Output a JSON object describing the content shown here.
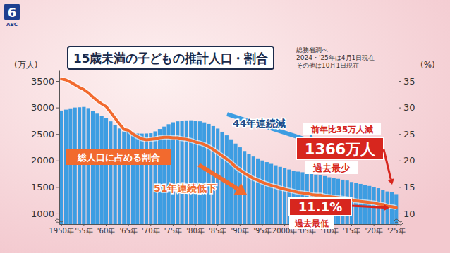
{
  "chart_data": {
    "type": "bar",
    "title": "15歳未満の子どもの推計人口・割合",
    "categories": [
      "1950年",
      null,
      null,
      null,
      null,
      "'55年",
      null,
      null,
      null,
      null,
      "'60年",
      null,
      null,
      null,
      null,
      "'65年",
      null,
      null,
      null,
      null,
      "'70年",
      null,
      null,
      null,
      null,
      "'75年",
      null,
      null,
      null,
      null,
      "'80年",
      null,
      null,
      null,
      null,
      "'85年",
      null,
      null,
      null,
      null,
      "'90年",
      null,
      null,
      null,
      null,
      "'95年",
      null,
      null,
      null,
      null,
      "2000年",
      null,
      null,
      null,
      null,
      "'05年",
      null,
      null,
      null,
      null,
      "'10年",
      null,
      null,
      null,
      null,
      "'15年",
      null,
      null,
      null,
      null,
      "'20年",
      null,
      null,
      null,
      null,
      "'25年"
    ],
    "series": [
      {
        "type": "bar",
        "color": "#3d9de2",
        "values": [
          2943,
          2960,
          2985,
          3000,
          3005,
          3012,
          2990,
          2940,
          2885,
          2840,
          2807,
          2740,
          2670,
          2605,
          2550,
          2553,
          2525,
          2510,
          2508,
          2510,
          2515,
          2550,
          2595,
          2640,
          2685,
          2722,
          2740,
          2750,
          2758,
          2760,
          2751,
          2740,
          2720,
          2690,
          2650,
          2603,
          2543,
          2475,
          2400,
          2320,
          2249,
          2180,
          2125,
          2075,
          2040,
          2001,
          1970,
          1937,
          1910,
          1880,
          1851,
          1830,
          1810,
          1791,
          1779,
          1759,
          1746,
          1734,
          1721,
          1707,
          1684,
          1670,
          1655,
          1639,
          1623,
          1595,
          1578,
          1559,
          1542,
          1521,
          1503,
          1478,
          1450,
          1417,
          1401,
          1366
        ]
      },
      {
        "type": "line",
        "name": "総人口に占める割合",
        "color": "#f26a2e",
        "axis": "y2",
        "values": [
          35.4,
          35.2,
          34.8,
          34.3,
          33.8,
          33.4,
          32.8,
          32.0,
          31.3,
          30.7,
          30.2,
          29.1,
          28.0,
          26.9,
          25.9,
          25.7,
          25.0,
          24.5,
          24.1,
          23.9,
          24.0,
          24.1,
          24.3,
          24.4,
          24.4,
          24.3,
          24.3,
          24.1,
          24.0,
          23.8,
          23.5,
          23.3,
          23.0,
          22.6,
          22.1,
          21.5,
          20.9,
          20.3,
          19.6,
          18.8,
          18.2,
          17.6,
          17.1,
          16.6,
          16.3,
          15.9,
          15.6,
          15.3,
          15.1,
          14.8,
          14.6,
          14.4,
          14.2,
          14.0,
          13.9,
          13.8,
          13.6,
          13.5,
          13.5,
          13.3,
          13.2,
          13.1,
          13.0,
          12.9,
          12.8,
          12.6,
          12.4,
          12.3,
          12.2,
          12.1,
          12.0,
          11.8,
          11.7,
          11.4,
          11.3,
          11.1
        ]
      }
    ],
    "ylim": [
      800,
      3700
    ],
    "yticks": [
      1000,
      1500,
      2000,
      2500,
      3000,
      3500
    ],
    "y2lim": [
      8,
      37
    ],
    "y2ticks": [
      10,
      15,
      20,
      25,
      30,
      35
    ],
    "y_label": "(万人)",
    "y2_label": "(%)",
    "annotations": [
      {
        "text": "総務省調べ"
      },
      {
        "text": "2024・'25年は4月1日現在"
      },
      {
        "text": "その他は10月1日現在"
      },
      {
        "text": "44年連続減"
      },
      {
        "text": "前年比35万人減"
      },
      {
        "text": "1366万人"
      },
      {
        "text": "過去最少"
      },
      {
        "text": "51年連続低下"
      },
      {
        "text": "11.1%"
      },
      {
        "text": "過去最低"
      },
      {
        "text": "6"
      },
      {
        "text": "ABC"
      }
    ]
  }
}
